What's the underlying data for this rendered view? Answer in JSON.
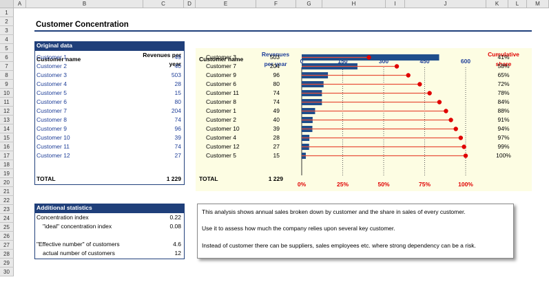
{
  "sheet": {
    "columns": [
      "A",
      "B",
      "C",
      "D",
      "E",
      "F",
      "G",
      "H",
      "I",
      "J",
      "K",
      "L",
      "M"
    ],
    "rows": [
      "1",
      "2",
      "3",
      "4",
      "5",
      "6",
      "7",
      "8",
      "9",
      "10",
      "11",
      "12",
      "13",
      "14",
      "15",
      "16",
      "17",
      "18",
      "19",
      "20",
      "21",
      "22",
      "23",
      "24",
      "25",
      "26",
      "27",
      "28",
      "29",
      "30"
    ]
  },
  "title": "Customer Concentration",
  "original": {
    "header": "Original data",
    "col_name": "Customer name",
    "col_rev_line1": "Revenues per",
    "col_rev_line2": "year",
    "rows": [
      {
        "name": "Customer 1",
        "value": "49"
      },
      {
        "name": "Customer 2",
        "value": "40"
      },
      {
        "name": "Customer 3",
        "value": "503"
      },
      {
        "name": "Customer 4",
        "value": "28"
      },
      {
        "name": "Customer 5",
        "value": "15"
      },
      {
        "name": "Customer 6",
        "value": "80"
      },
      {
        "name": "Customer 7",
        "value": "204"
      },
      {
        "name": "Customer 8",
        "value": "74"
      },
      {
        "name": "Customer 9",
        "value": "96"
      },
      {
        "name": "Customer 10",
        "value": "39"
      },
      {
        "name": "Customer 11",
        "value": "74"
      },
      {
        "name": "Customer 12",
        "value": "27"
      }
    ],
    "total_label": "TOTAL",
    "total_value": "1 229"
  },
  "sorted": {
    "col_name": "Customer name",
    "col_rev_line1": "Revenues",
    "col_rev_line2": "per year",
    "col_cum_line1": "Cumulative",
    "col_cum_line2": "share",
    "rows": [
      {
        "name": "Customer 3",
        "value": "503",
        "share": "41%"
      },
      {
        "name": "Customer 7",
        "value": "204",
        "share": "58%"
      },
      {
        "name": "Customer 9",
        "value": "96",
        "share": "65%"
      },
      {
        "name": "Customer 6",
        "value": "80",
        "share": "72%"
      },
      {
        "name": "Customer 11",
        "value": "74",
        "share": "78%"
      },
      {
        "name": "Customer 8",
        "value": "74",
        "share": "84%"
      },
      {
        "name": "Customer 1",
        "value": "49",
        "share": "88%"
      },
      {
        "name": "Customer 2",
        "value": "40",
        "share": "91%"
      },
      {
        "name": "Customer 10",
        "value": "39",
        "share": "94%"
      },
      {
        "name": "Customer 4",
        "value": "28",
        "share": "97%"
      },
      {
        "name": "Customer 12",
        "value": "27",
        "share": "99%"
      },
      {
        "name": "Customer 5",
        "value": "15",
        "share": "100%"
      }
    ],
    "total_label": "TOTAL",
    "total_value": "1 229"
  },
  "chart_data": {
    "type": "bar",
    "categories": [
      "Customer 3",
      "Customer 7",
      "Customer 9",
      "Customer 6",
      "Customer 11",
      "Customer 8",
      "Customer 1",
      "Customer 2",
      "Customer 10",
      "Customer 4",
      "Customer 12",
      "Customer 5"
    ],
    "series": [
      {
        "values": [
          503,
          204,
          96,
          80,
          74,
          74,
          49,
          40,
          39,
          28,
          27,
          15
        ]
      },
      {
        "values": [
          0.41,
          0.58,
          0.65,
          0.72,
          0.78,
          0.84,
          0.88,
          0.91,
          0.94,
          0.97,
          0.99,
          1.0
        ]
      }
    ],
    "top_axis": {
      "min": 0,
      "max": 600,
      "ticks": [
        "0",
        "150",
        "300",
        "450",
        "600"
      ]
    },
    "bottom_axis": {
      "min": 0,
      "max": 1,
      "ticks": [
        "0%",
        "25%",
        "50%",
        "75%",
        "100%"
      ]
    },
    "colors": {
      "bar": "#1f4e8c",
      "line": "#e8503a",
      "dot": "#e00000"
    }
  },
  "stats": {
    "header": "Additional statistics",
    "rows": [
      {
        "label": "Concentration index",
        "value": "0.22"
      },
      {
        "label": "\"ideal\" concentration index",
        "value": "0.08"
      },
      {
        "label": "\"Effective number\" of customers",
        "value": "4.6"
      },
      {
        "label": "actual number of customers",
        "value": "12"
      }
    ]
  },
  "note": {
    "line1": "This analysis shows annual sales broken down by customer and the share in sales of every customer.",
    "line2": "Use it to assess how much the company relies upon several key customer.",
    "line3": "Instead of customer there can be suppliers, sales employees etc. where strong dependency can be a risk."
  },
  "colors": {
    "accent": "#1f3f7a",
    "chart_bg": "#fdfde3",
    "share_red": "#e00000"
  }
}
